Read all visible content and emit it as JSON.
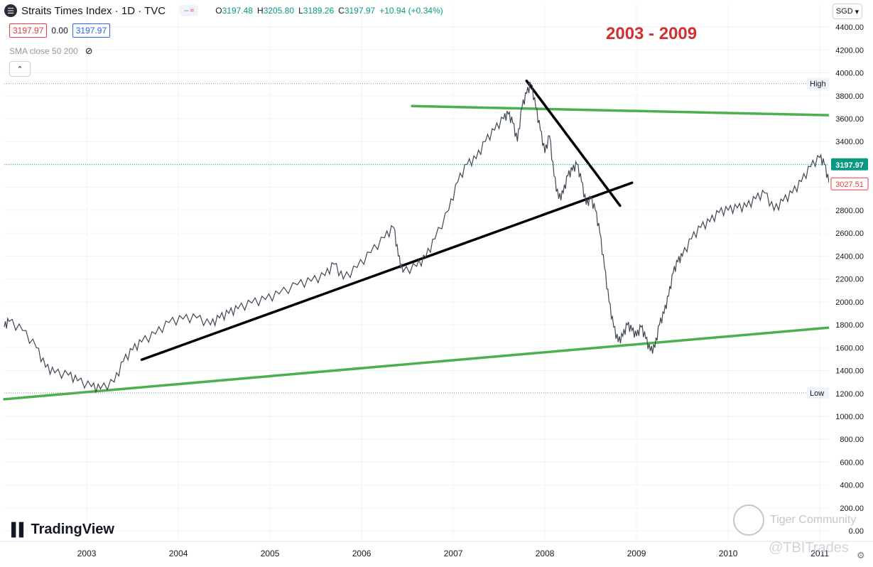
{
  "header": {
    "symbol_icon": "tradingview-symbol-icon",
    "title": "Straits Times Index · 1D · TVC",
    "compare_left": "–",
    "compare_right": "≈",
    "ohlc": {
      "o_label": "O",
      "o": "3197.48",
      "h_label": "H",
      "h": "3205.80",
      "l_label": "L",
      "l": "3189.26",
      "c_label": "C",
      "c": "3197.97",
      "change": "+10.94 (+0.34%)"
    }
  },
  "price_boxes": {
    "bid": "3197.97",
    "spread": "0.00",
    "ask": "3197.97"
  },
  "indicator": {
    "label": "SMA close 50 200",
    "icon": "eye-crossed-icon"
  },
  "collapse_icon": "chevron-up-icon",
  "currency": {
    "label": "SGD",
    "icon": "chevron-down-icon"
  },
  "annotation": "2003 - 2009",
  "branding": {
    "logo": "TradingView",
    "watermark": "Tiger Community",
    "handle": "@TBITrades"
  },
  "settings_icon": "gear-icon",
  "colors": {
    "up": "#089981",
    "down": "#f23645",
    "trend_green": "#4caf50",
    "trend_black": "#000000",
    "annotation": "#d32f2f"
  },
  "chart_data": {
    "type": "line",
    "title": "Straits Times Index · 1D · TVC",
    "grid": true,
    "x_ticks": [
      "2003",
      "2004",
      "2005",
      "2006",
      "2007",
      "2008",
      "2009",
      "2010",
      "2011"
    ],
    "y_ticks": [
      0,
      200,
      400,
      600,
      800,
      1000,
      1200,
      1400,
      1600,
      1800,
      2000,
      2200,
      2400,
      2600,
      2800,
      3000,
      3200,
      3400,
      3600,
      3800,
      4000,
      4200,
      4400
    ],
    "ylim": [
      -30,
      4450
    ],
    "xlim": [
      2002.1,
      2011.1
    ],
    "series": [
      {
        "x": [
          2002.1,
          2002.15,
          2002.3,
          2002.45,
          2002.55,
          2002.65,
          2002.8,
          2002.9,
          2003.05,
          2003.15,
          2003.3,
          2003.4,
          2003.5,
          2003.6,
          2003.75,
          2003.9,
          2004.05,
          2004.2,
          2004.35,
          2004.45,
          2004.55,
          2004.65,
          2004.8,
          2004.95,
          2005.1,
          2005.3,
          2005.45,
          2005.6,
          2005.7,
          2005.8,
          2005.95,
          2006.1,
          2006.25,
          2006.35,
          2006.4,
          2006.45,
          2006.6,
          2006.7,
          2006.8,
          2006.95,
          2007.05,
          2007.15,
          2007.25,
          2007.35,
          2007.45,
          2007.55,
          2007.6,
          2007.65,
          2007.7,
          2007.75,
          2007.8,
          2007.85,
          2007.9,
          2007.95,
          2008.0,
          2008.05,
          2008.1,
          2008.15,
          2008.2,
          2008.25,
          2008.3,
          2008.35,
          2008.4,
          2008.45,
          2008.5,
          2008.55,
          2008.6,
          2008.65,
          2008.7,
          2008.75,
          2008.8,
          2008.85,
          2008.9,
          2008.95,
          2009.0,
          2009.05,
          2009.1,
          2009.15,
          2009.2,
          2009.25,
          2009.3,
          2009.35,
          2009.4,
          2009.45,
          2009.5,
          2009.6,
          2009.7,
          2009.8,
          2009.9,
          2010.0,
          2010.1,
          2010.2,
          2010.3,
          2010.4,
          2010.5,
          2010.6,
          2010.7,
          2010.8,
          2010.9,
          2011.0,
          2011.05,
          2011.1
        ],
        "y": [
          1780,
          1830,
          1750,
          1600,
          1430,
          1380,
          1360,
          1310,
          1260,
          1240,
          1300,
          1480,
          1580,
          1650,
          1720,
          1820,
          1850,
          1860,
          1800,
          1860,
          1900,
          1940,
          1990,
          2020,
          2070,
          2150,
          2180,
          2230,
          2330,
          2200,
          2300,
          2430,
          2560,
          2650,
          2400,
          2260,
          2310,
          2390,
          2550,
          2800,
          3050,
          3200,
          3250,
          3400,
          3500,
          3600,
          3640,
          3560,
          3400,
          3700,
          3820,
          3900,
          3700,
          3500,
          3300,
          3450,
          3100,
          2900,
          2950,
          3100,
          3150,
          3200,
          3050,
          2850,
          2900,
          2800,
          2600,
          2300,
          2000,
          1780,
          1650,
          1700,
          1800,
          1750,
          1700,
          1780,
          1680,
          1570,
          1600,
          1800,
          1900,
          2050,
          2250,
          2350,
          2400,
          2550,
          2650,
          2700,
          2780,
          2800,
          2820,
          2830,
          2900,
          2950,
          2800,
          2880,
          2950,
          3050,
          3180,
          3260,
          3200,
          3040
        ]
      }
    ],
    "trendlines": [
      {
        "color": "green",
        "from": [
          2002.1,
          1150
        ],
        "to": [
          2011.1,
          1775
        ]
      },
      {
        "color": "green",
        "from": [
          2006.55,
          3710
        ],
        "to": [
          2011.1,
          3630
        ]
      },
      {
        "color": "black",
        "from": [
          2003.6,
          1495
        ],
        "to": [
          2008.95,
          3040
        ]
      },
      {
        "color": "black",
        "from": [
          2007.8,
          3930
        ],
        "to": [
          2008.82,
          2840
        ]
      }
    ],
    "reference_lines": [
      {
        "label": "High",
        "value": 3906.16
      },
      {
        "label": "Low",
        "value": 1205.31
      }
    ],
    "last_price": 3197.97,
    "secondary_price": 3027.51
  }
}
